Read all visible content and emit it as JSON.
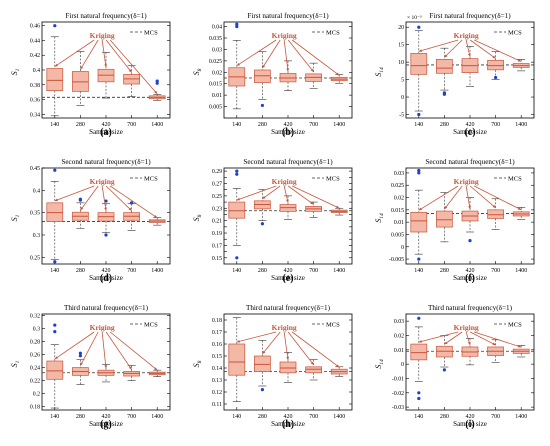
{
  "figure": {
    "annotation_label": "Kriging",
    "legend_label": "MCS",
    "accent_color": "#c8553d",
    "box_fill": "#f4b8a6",
    "outlier_color": "#1f3fd1",
    "mcs_line_color": "#333333"
  },
  "chart_data": [
    {
      "panel": "(a)",
      "type": "box",
      "title": "First natural frequency(δ=1)",
      "xlabel": "Sample size",
      "ylabel": "S1",
      "ylabel_main": "S",
      "ylabel_sub": "1",
      "categories": [
        "140",
        "280",
        "420",
        "700",
        "1400"
      ],
      "ylim": [
        0.335,
        0.465
      ],
      "yticks": [
        0.34,
        0.36,
        0.38,
        0.4,
        0.42,
        0.44,
        0.46
      ],
      "ytick_labels": [
        "0.34",
        "0.36",
        "0.38",
        "0.4",
        "0.42",
        "0.44",
        "0.46"
      ],
      "scale_note": "",
      "mcs": 0.363,
      "boxes": [
        {
          "min": 0.338,
          "q1": 0.372,
          "median": 0.386,
          "q3": 0.402,
          "max": 0.445,
          "outliers": [
            0.46
          ]
        },
        {
          "min": 0.352,
          "q1": 0.371,
          "median": 0.384,
          "q3": 0.398,
          "max": 0.425,
          "outliers": []
        },
        {
          "min": 0.362,
          "q1": 0.384,
          "median": 0.393,
          "q3": 0.401,
          "max": 0.424,
          "outliers": []
        },
        {
          "min": 0.364,
          "q1": 0.381,
          "median": 0.388,
          "q3": 0.394,
          "max": 0.406,
          "outliers": []
        },
        {
          "min": 0.359,
          "q1": 0.361,
          "median": 0.363,
          "q3": 0.365,
          "max": 0.367,
          "outliers": [
            0.385,
            0.382
          ]
        }
      ]
    },
    {
      "panel": "(b)",
      "type": "box",
      "title": "First natural frequency(δ=1)",
      "xlabel": "Sample size",
      "ylabel": "S8",
      "ylabel_main": "S",
      "ylabel_sub": "8",
      "categories": [
        "140",
        "280",
        "420",
        "700",
        "1400"
      ],
      "ylim": [
        0.0,
        0.042
      ],
      "yticks": [
        0.005,
        0.01,
        0.015,
        0.02,
        0.025,
        0.03,
        0.035,
        0.04
      ],
      "ytick_labels": [
        "0.005",
        "0.01",
        "0.015",
        "0.02",
        "0.025",
        "0.03",
        "0.035",
        "0.04"
      ],
      "scale_note": "",
      "mcs": 0.0175,
      "boxes": [
        {
          "min": 0.004,
          "q1": 0.014,
          "median": 0.018,
          "q3": 0.022,
          "max": 0.034,
          "outliers": [
            0.041,
            0.04
          ]
        },
        {
          "min": 0.008,
          "q1": 0.0155,
          "median": 0.0185,
          "q3": 0.021,
          "max": 0.029,
          "outliers": [
            0.0055
          ]
        },
        {
          "min": 0.012,
          "q1": 0.0158,
          "median": 0.0175,
          "q3": 0.0195,
          "max": 0.025,
          "outliers": []
        },
        {
          "min": 0.013,
          "q1": 0.016,
          "median": 0.0178,
          "q3": 0.0193,
          "max": 0.024,
          "outliers": []
        },
        {
          "min": 0.015,
          "q1": 0.0163,
          "median": 0.017,
          "q3": 0.0178,
          "max": 0.019,
          "outliers": []
        }
      ]
    },
    {
      "panel": "(c)",
      "type": "box",
      "title": "First natural frequency(δ=1)",
      "xlabel": "Sample size",
      "ylabel": "S14",
      "ylabel_main": "S",
      "ylabel_sub": "14",
      "categories": [
        "140",
        "280",
        "420",
        "700",
        "1400"
      ],
      "ylim": [
        -6,
        21.5
      ],
      "yticks": [
        -5,
        0,
        5,
        10,
        15,
        20
      ],
      "ytick_labels": [
        "-5",
        "0",
        "5",
        "10",
        "15",
        "20"
      ],
      "scale_note": "× 10⁻³",
      "mcs": 9.2,
      "boxes": [
        {
          "min": -4,
          "q1": 6.5,
          "median": 9,
          "q3": 12.5,
          "max": 19,
          "outliers": [
            -5,
            20
          ]
        },
        {
          "min": 2,
          "q1": 6.8,
          "median": 8.3,
          "q3": 10.8,
          "max": 14,
          "outliers": [
            1.2,
            0.8
          ]
        },
        {
          "min": 3,
          "q1": 7,
          "median": 9,
          "q3": 11,
          "max": 14.5,
          "outliers": []
        },
        {
          "min": 5,
          "q1": 7.8,
          "median": 9,
          "q3": 10.5,
          "max": 13,
          "outliers": [
            5.6
          ]
        },
        {
          "min": 7.5,
          "q1": 8.5,
          "median": 9,
          "q3": 9.6,
          "max": 10.8,
          "outliers": []
        }
      ]
    },
    {
      "panel": "(d)",
      "type": "box",
      "title": "Second natural frequency(δ=1)",
      "xlabel": "Sample size",
      "ylabel": "S1",
      "ylabel_main": "S",
      "ylabel_sub": "1",
      "categories": [
        "140",
        "280",
        "420",
        "700",
        "1400"
      ],
      "ylim": [
        0.235,
        0.45
      ],
      "yticks": [
        0.25,
        0.3,
        0.35,
        0.4,
        0.45
      ],
      "ytick_labels": [
        "0.25",
        "0.3",
        "0.35",
        "0.4",
        "0.45"
      ],
      "scale_note": "",
      "mcs": 0.33,
      "boxes": [
        {
          "min": 0.245,
          "q1": 0.33,
          "median": 0.35,
          "q3": 0.372,
          "max": 0.42,
          "outliers": [
            0.445,
            0.24
          ]
        },
        {
          "min": 0.315,
          "q1": 0.333,
          "median": 0.342,
          "q3": 0.351,
          "max": 0.372,
          "outliers": [
            0.378,
            0.38
          ]
        },
        {
          "min": 0.305,
          "q1": 0.331,
          "median": 0.341,
          "q3": 0.35,
          "max": 0.37,
          "outliers": [
            0.3,
            0.376
          ]
        },
        {
          "min": 0.31,
          "q1": 0.333,
          "median": 0.342,
          "q3": 0.35,
          "max": 0.37,
          "outliers": [
            0.372
          ]
        },
        {
          "min": 0.322,
          "q1": 0.328,
          "median": 0.331,
          "q3": 0.334,
          "max": 0.339,
          "outliers": []
        }
      ]
    },
    {
      "panel": "(e)",
      "type": "box",
      "title": "Second natural frequency(δ=1)",
      "xlabel": "Sample size",
      "ylabel": "S8",
      "ylabel_main": "S",
      "ylabel_sub": "8",
      "categories": [
        "140",
        "280",
        "420",
        "700",
        "1400"
      ],
      "ylim": [
        0.14,
        0.295
      ],
      "yticks": [
        0.15,
        0.16,
        0.17,
        0.18,
        0.19,
        0.2,
        0.21,
        0.22,
        0.23,
        0.24,
        0.25,
        0.26,
        0.27,
        0.28,
        0.29
      ],
      "ytick_labels": [
        "0.15",
        "",
        "0.17",
        "",
        "0.19",
        "",
        "0.21",
        "",
        "0.23",
        "",
        "0.25",
        "",
        "0.27",
        "",
        "0.29"
      ],
      "scale_note": "",
      "mcs": 0.226,
      "boxes": [
        {
          "min": 0.17,
          "q1": 0.214,
          "median": 0.226,
          "q3": 0.24,
          "max": 0.262,
          "outliers": [
            0.29,
            0.285,
            0.15
          ]
        },
        {
          "min": 0.21,
          "q1": 0.229,
          "median": 0.236,
          "q3": 0.242,
          "max": 0.26,
          "outliers": [
            0.205
          ]
        },
        {
          "min": 0.212,
          "q1": 0.225,
          "median": 0.231,
          "q3": 0.236,
          "max": 0.25,
          "outliers": []
        },
        {
          "min": 0.215,
          "q1": 0.225,
          "median": 0.229,
          "q3": 0.233,
          "max": 0.24,
          "outliers": []
        },
        {
          "min": 0.219,
          "q1": 0.223,
          "median": 0.225,
          "q3": 0.227,
          "max": 0.23,
          "outliers": []
        }
      ]
    },
    {
      "panel": "(f)",
      "type": "box",
      "title": "Second natural frequency(δ=1)",
      "xlabel": "Sample size",
      "ylabel": "S14",
      "ylabel_main": "S",
      "ylabel_sub": "14",
      "categories": [
        "140",
        "280",
        "420",
        "700",
        "1400"
      ],
      "ylim": [
        -0.007,
        0.032
      ],
      "yticks": [
        -0.005,
        0,
        0.005,
        0.01,
        0.015,
        0.02,
        0.025,
        0.03
      ],
      "ytick_labels": [
        "-0.005",
        "0",
        "0.005",
        "0.01",
        "0.015",
        "0.02",
        "0.025",
        "0.03"
      ],
      "scale_note": "",
      "mcs": 0.0135,
      "boxes": [
        {
          "min": -0.003,
          "q1": 0.006,
          "median": 0.0105,
          "q3": 0.014,
          "max": 0.023,
          "outliers": [
            -0.005,
            0.031,
            0.03
          ]
        },
        {
          "min": 0.002,
          "q1": 0.008,
          "median": 0.011,
          "q3": 0.0145,
          "max": 0.022,
          "outliers": []
        },
        {
          "min": 0.006,
          "q1": 0.0105,
          "median": 0.0125,
          "q3": 0.0145,
          "max": 0.02,
          "outliers": [
            0.0025
          ]
        },
        {
          "min": 0.007,
          "q1": 0.0115,
          "median": 0.013,
          "q3": 0.015,
          "max": 0.0195,
          "outliers": []
        },
        {
          "min": 0.011,
          "q1": 0.0125,
          "median": 0.0133,
          "q3": 0.0142,
          "max": 0.016,
          "outliers": []
        }
      ]
    },
    {
      "panel": "(g)",
      "type": "box",
      "title": "Third natural frequency(δ=1)",
      "xlabel": "Sample size",
      "ylabel": "S1",
      "ylabel_main": "S",
      "ylabel_sub": "1",
      "categories": [
        "140",
        "280",
        "420",
        "700",
        "1400"
      ],
      "ylim": [
        0.175,
        0.322
      ],
      "yticks": [
        0.18,
        0.2,
        0.22,
        0.24,
        0.26,
        0.28,
        0.3,
        0.32
      ],
      "ytick_labels": [
        "0.18",
        "0.2",
        "0.22",
        "0.24",
        "0.26",
        "0.28",
        "0.3",
        "0.32"
      ],
      "scale_note": "",
      "mcs": 0.232,
      "boxes": [
        {
          "min": 0.178,
          "q1": 0.222,
          "median": 0.235,
          "q3": 0.25,
          "max": 0.275,
          "outliers": [
            0.295,
            0.305
          ]
        },
        {
          "min": 0.214,
          "q1": 0.228,
          "median": 0.234,
          "q3": 0.24,
          "max": 0.252,
          "outliers": [
            0.258,
            0.262
          ]
        },
        {
          "min": 0.218,
          "q1": 0.228,
          "median": 0.232,
          "q3": 0.236,
          "max": 0.245,
          "outliers": []
        },
        {
          "min": 0.22,
          "q1": 0.227,
          "median": 0.231,
          "q3": 0.234,
          "max": 0.243,
          "outliers": []
        },
        {
          "min": 0.226,
          "q1": 0.229,
          "median": 0.231,
          "q3": 0.233,
          "max": 0.236,
          "outliers": []
        }
      ]
    },
    {
      "panel": "(h)",
      "type": "box",
      "title": "Third natural frequency(δ=1)",
      "xlabel": "Sample size",
      "ylabel": "S8",
      "ylabel_main": "S",
      "ylabel_sub": "8",
      "categories": [
        "140",
        "280",
        "420",
        "700",
        "1400"
      ],
      "ylim": [
        0.105,
        0.185
      ],
      "yticks": [
        0.11,
        0.12,
        0.13,
        0.14,
        0.15,
        0.16,
        0.17,
        0.18
      ],
      "ytick_labels": [
        "0.11",
        "0.12",
        "0.13",
        "0.14",
        "0.15",
        "0.16",
        "0.17",
        "0.18"
      ],
      "scale_note": "",
      "mcs": 0.137,
      "boxes": [
        {
          "min": 0.112,
          "q1": 0.134,
          "median": 0.145,
          "q3": 0.16,
          "max": 0.182,
          "outliers": []
        },
        {
          "min": 0.125,
          "q1": 0.137,
          "median": 0.143,
          "q3": 0.15,
          "max": 0.163,
          "outliers": [
            0.122
          ]
        },
        {
          "min": 0.128,
          "q1": 0.136,
          "median": 0.14,
          "q3": 0.145,
          "max": 0.153,
          "outliers": []
        },
        {
          "min": 0.13,
          "q1": 0.136,
          "median": 0.139,
          "q3": 0.141,
          "max": 0.147,
          "outliers": []
        },
        {
          "min": 0.133,
          "q1": 0.135,
          "median": 0.137,
          "q3": 0.139,
          "max": 0.141,
          "outliers": []
        }
      ]
    },
    {
      "panel": "(i)",
      "type": "box",
      "title": "Third natural frequency(δ=1)",
      "xlabel": "Sample size",
      "ylabel": "S14",
      "ylabel_main": "S",
      "ylabel_sub": "14",
      "categories": [
        "140",
        "280",
        "420",
        "700",
        "1400"
      ],
      "ylim": [
        -0.032,
        0.035
      ],
      "yticks": [
        -0.03,
        -0.02,
        -0.01,
        0,
        0.01,
        0.02,
        0.03
      ],
      "ytick_labels": [
        "-0.03",
        "-0.02",
        "-0.01",
        "0",
        "0.01",
        "0.02",
        "0.03"
      ],
      "scale_note": "",
      "mcs": 0.009,
      "boxes": [
        {
          "min": -0.012,
          "q1": 0.003,
          "median": 0.008,
          "q3": 0.014,
          "max": 0.026,
          "outliers": [
            -0.02,
            -0.024,
            0.032
          ]
        },
        {
          "min": -0.002,
          "q1": 0.005,
          "median": 0.009,
          "q3": 0.0125,
          "max": 0.02,
          "outliers": [
            -0.004
          ]
        },
        {
          "min": -0.0005,
          "q1": 0.0055,
          "median": 0.0085,
          "q3": 0.012,
          "max": 0.018,
          "outliers": []
        },
        {
          "min": 0.001,
          "q1": 0.006,
          "median": 0.009,
          "q3": 0.012,
          "max": 0.017,
          "outliers": []
        },
        {
          "min": 0.005,
          "q1": 0.0075,
          "median": 0.009,
          "q3": 0.0105,
          "max": 0.013,
          "outliers": []
        }
      ]
    }
  ]
}
